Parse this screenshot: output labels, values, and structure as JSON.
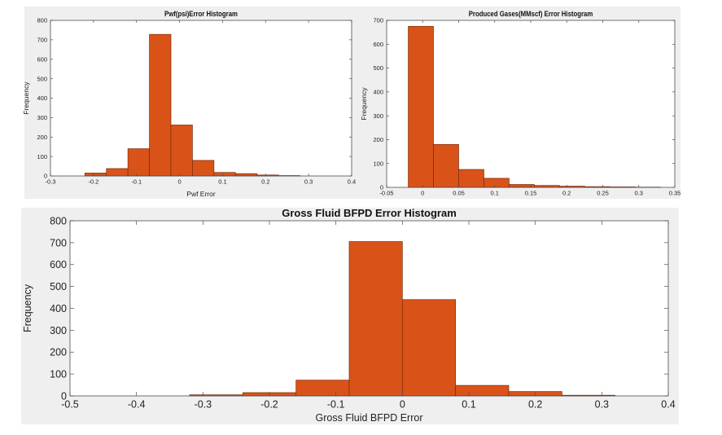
{
  "charts": [
    {
      "title": "Pwf(psi)Error Histogram",
      "xlabel": "Pwf Error",
      "ylabel": "Frequency",
      "xticks": [
        "-0.3",
        "-0.2",
        "-0.1",
        "0",
        "0.1",
        "0.2",
        "0.3",
        "0.4"
      ],
      "yticks": [
        "0",
        "100",
        "200",
        "300",
        "400",
        "500",
        "600",
        "700",
        "800"
      ]
    },
    {
      "title": "Produced Gases(MMscf) Error Histogram",
      "xlabel": "",
      "ylabel": "Frequency",
      "xticks": [
        "-0.05",
        "0",
        "0.05",
        "0.1",
        "0.15",
        "0.2",
        "0.25",
        "0.3",
        "0.35"
      ],
      "yticks": [
        "0",
        "100",
        "200",
        "300",
        "400",
        "500",
        "600",
        "700"
      ]
    },
    {
      "title": "Gross Fluid BFPD Error Histogram",
      "xlabel": "Gross Fluid BFPD Error",
      "ylabel": "Frequency",
      "xticks": [
        "-0.5",
        "-0.4",
        "-0.3",
        "-0.2",
        "-0.1",
        "0",
        "0.1",
        "0.2",
        "0.3",
        "0.4"
      ],
      "yticks": [
        "0",
        "100",
        "200",
        "300",
        "400",
        "500",
        "600",
        "700",
        "800"
      ]
    }
  ],
  "chart_data": [
    {
      "type": "bar",
      "title": "Pwf(psi)Error Histogram",
      "xlabel": "Pwf Error",
      "ylabel": "Frequency",
      "xlim": [
        -0.3,
        0.4
      ],
      "ylim": [
        0,
        800
      ],
      "bin_edges": [
        -0.22,
        -0.17,
        -0.12,
        -0.07,
        -0.02,
        0.03,
        0.08,
        0.13,
        0.18,
        0.23,
        0.28
      ],
      "values": [
        15,
        38,
        140,
        728,
        262,
        80,
        18,
        12,
        5,
        2
      ],
      "color": "#d95319",
      "grid": false
    },
    {
      "type": "bar",
      "title": "Produced Gases(MMscf) Error Histogram",
      "xlabel": "",
      "ylabel": "Frequency",
      "xlim": [
        -0.05,
        0.35
      ],
      "ylim": [
        0,
        700
      ],
      "bin_edges": [
        -0.02,
        0.015,
        0.05,
        0.085,
        0.12,
        0.155,
        0.19,
        0.225,
        0.26,
        0.295,
        0.33
      ],
      "values": [
        675,
        180,
        75,
        38,
        12,
        8,
        5,
        3,
        2,
        1
      ],
      "color": "#d95319",
      "grid": false
    },
    {
      "type": "bar",
      "title": "Gross Fluid BFPD Error Histogram",
      "xlabel": "Gross Fluid BFPD Error",
      "ylabel": "Frequency",
      "xlim": [
        -0.5,
        0.4
      ],
      "ylim": [
        0,
        800
      ],
      "bin_edges": [
        -0.32,
        -0.24,
        -0.16,
        -0.08,
        0.0,
        0.08,
        0.16,
        0.24,
        0.32
      ],
      "values": [
        5,
        15,
        72,
        705,
        440,
        48,
        20,
        3
      ],
      "color": "#d95319",
      "grid": false
    }
  ]
}
